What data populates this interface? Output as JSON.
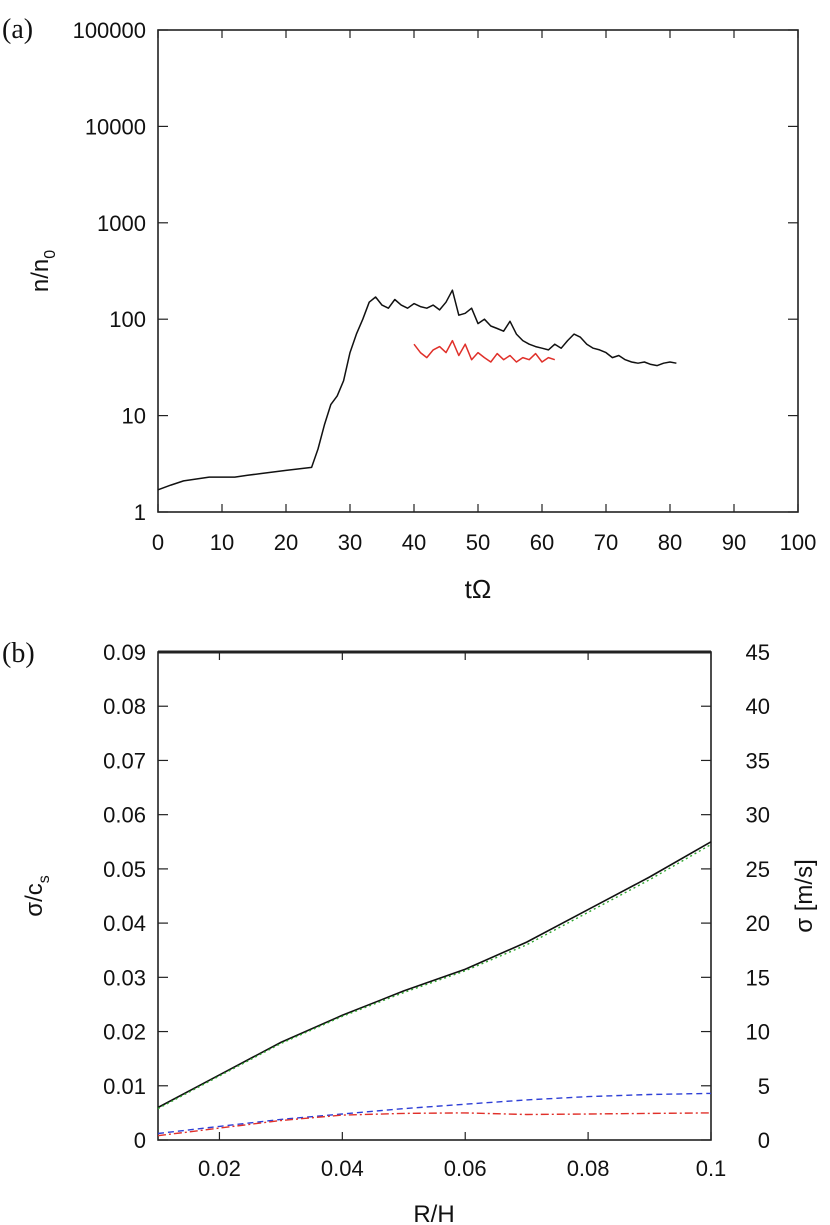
{
  "chart_data": [
    {
      "panel_label": "(a)",
      "type": "line",
      "xlabel": "tΩ",
      "ylabel": "n/n",
      "ylabel_sub": "0",
      "xlim": [
        0,
        100
      ],
      "ylim": [
        1,
        100000
      ],
      "yscale": "log",
      "xticks": [
        "0",
        "10",
        "20",
        "30",
        "40",
        "50",
        "60",
        "70",
        "80",
        "90",
        "100"
      ],
      "yticks": [
        "1",
        "10",
        "100",
        "1000",
        "10000",
        "100000"
      ],
      "grid": false,
      "series": [
        {
          "color": "#111111",
          "x": [
            0,
            2,
            4,
            6,
            8,
            10,
            12,
            14,
            16,
            18,
            20,
            22,
            24,
            25,
            26,
            27,
            28,
            29,
            30,
            31,
            32,
            33,
            34,
            35,
            36,
            37,
            38,
            39,
            40,
            41,
            42,
            43,
            44,
            45,
            46,
            47,
            48,
            49,
            50,
            51,
            52,
            53,
            54,
            55,
            56,
            57,
            58,
            59,
            60,
            61,
            62,
            63,
            64,
            65,
            66,
            67,
            68,
            69,
            70,
            71,
            72,
            73,
            74,
            75,
            76,
            77,
            78,
            79,
            80,
            81
          ],
          "y": [
            1.7,
            1.9,
            2.1,
            2.2,
            2.3,
            2.3,
            2.3,
            2.4,
            2.5,
            2.6,
            2.7,
            2.8,
            2.9,
            4.5,
            8,
            13,
            16,
            23,
            45,
            70,
            100,
            150,
            170,
            140,
            130,
            160,
            140,
            130,
            145,
            135,
            130,
            140,
            125,
            150,
            200,
            110,
            115,
            130,
            90,
            100,
            85,
            80,
            75,
            95,
            70,
            60,
            55,
            52,
            50,
            48,
            55,
            50,
            60,
            70,
            65,
            55,
            50,
            48,
            45,
            40,
            42,
            38,
            36,
            35,
            36,
            34,
            33,
            35,
            36,
            35
          ]
        },
        {
          "color": "#e0302a",
          "x": [
            40,
            41,
            42,
            43,
            44,
            45,
            46,
            47,
            48,
            49,
            50,
            51,
            52,
            53,
            54,
            55,
            56,
            57,
            58,
            59,
            60,
            61,
            62
          ],
          "y": [
            55,
            45,
            40,
            48,
            52,
            45,
            60,
            42,
            55,
            38,
            45,
            40,
            36,
            44,
            38,
            42,
            36,
            40,
            38,
            44,
            36,
            40,
            38
          ]
        }
      ]
    },
    {
      "panel_label": "(b)",
      "type": "line",
      "xlabel": "R/H",
      "ylabel": "σ/c",
      "ylabel_sub": "s",
      "y2label": "σ [m/s]",
      "xlim": [
        0.01,
        0.1
      ],
      "ylim": [
        0,
        0.09
      ],
      "y2lim": [
        0,
        45
      ],
      "xticks": [
        "0.02",
        "0.04",
        "0.06",
        "0.08",
        "0.1"
      ],
      "yticks": [
        "0",
        "0.01",
        "0.02",
        "0.03",
        "0.04",
        "0.05",
        "0.06",
        "0.07",
        "0.08",
        "0.09"
      ],
      "y2ticks": [
        "0",
        "5",
        "10",
        "15",
        "20",
        "25",
        "30",
        "35",
        "40",
        "45"
      ],
      "grid": false,
      "series": [
        {
          "color": "#111111",
          "style": "solid",
          "x": [
            0.01,
            0.02,
            0.03,
            0.04,
            0.05,
            0.06,
            0.07,
            0.08,
            0.09,
            0.1
          ],
          "y": [
            0.006,
            0.012,
            0.018,
            0.023,
            0.0275,
            0.0315,
            0.0365,
            0.0425,
            0.0485,
            0.055
          ]
        },
        {
          "color": "#2fa62f",
          "style": "dotted",
          "x": [
            0.01,
            0.02,
            0.03,
            0.04,
            0.05,
            0.06,
            0.07,
            0.08,
            0.09,
            0.1
          ],
          "y": [
            0.0058,
            0.0118,
            0.0178,
            0.0228,
            0.0272,
            0.0312,
            0.036,
            0.042,
            0.048,
            0.0545
          ]
        },
        {
          "color": "#2e3fd6",
          "style": "dashed",
          "x": [
            0.01,
            0.02,
            0.03,
            0.04,
            0.05,
            0.06,
            0.07,
            0.08,
            0.09,
            0.1
          ],
          "y": [
            0.0012,
            0.0025,
            0.0038,
            0.0048,
            0.0058,
            0.0066,
            0.0074,
            0.008,
            0.0084,
            0.0086
          ]
        },
        {
          "color": "#e0302a",
          "style": "dashdot",
          "x": [
            0.01,
            0.02,
            0.03,
            0.04,
            0.05,
            0.06,
            0.07,
            0.08,
            0.09,
            0.1
          ],
          "y": [
            0.0008,
            0.0022,
            0.0036,
            0.0046,
            0.0049,
            0.005,
            0.0047,
            0.0048,
            0.0049,
            0.005
          ]
        }
      ]
    }
  ]
}
